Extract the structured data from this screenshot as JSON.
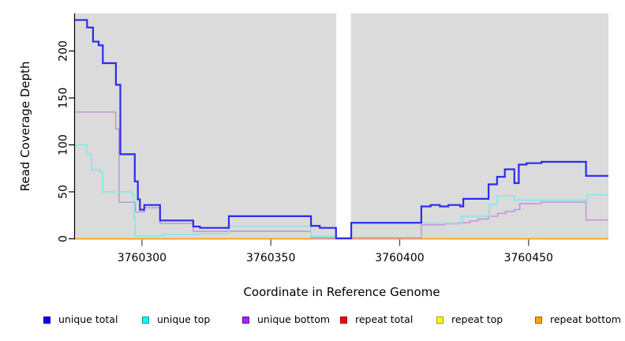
{
  "chart_data": {
    "type": "line",
    "subtype": "step",
    "title": "",
    "xlabel": "Coordinate in Reference Genome",
    "ylabel": "Read Coverage Depth",
    "xlim": [
      3760274,
      3760481
    ],
    "ylim": [
      0,
      240
    ],
    "x_ticks": [
      3760300,
      3760350,
      3760400,
      3760450
    ],
    "y_ticks": [
      0,
      50,
      100,
      150,
      200
    ],
    "grid": false,
    "legend_position": "bottom",
    "plot_background": "#DBDBDB",
    "page_background": "#FFFFFF",
    "gap_region": {
      "x_start": 3760375.4,
      "x_end": 3760381.1,
      "color": "#FFFFFF"
    },
    "series": [
      {
        "name": "repeat total",
        "line_color": "#E02222",
        "line_width": 1.2,
        "steps": [
          [
            3760274,
            0
          ]
        ]
      },
      {
        "name": "repeat top",
        "line_color": "#F5F500",
        "line_width": 1.2,
        "steps": [
          [
            3760274,
            0
          ]
        ]
      },
      {
        "name": "repeat bottom",
        "line_color": "#FFA413",
        "line_width": 1.8,
        "steps": [
          [
            3760274,
            0
          ]
        ]
      },
      {
        "name": "unique bottom",
        "line_color": "#C08FDC",
        "line_width": 1.4,
        "steps": [
          [
            3760274,
            135
          ],
          [
            3760289.8,
            117
          ],
          [
            3760291.1,
            39
          ],
          [
            3760297.5,
            28.5
          ],
          [
            3760300.9,
            33
          ],
          [
            3760307.0,
            16.3
          ],
          [
            3760319.9,
            8
          ],
          [
            3760365.6,
            0.8
          ],
          [
            3760375.3,
            0
          ],
          [
            3760381.2,
            0.8
          ],
          [
            3760408.4,
            14.9
          ],
          [
            3760417.5,
            15.9
          ],
          [
            3760423.2,
            17.1
          ],
          [
            3760427.3,
            19
          ],
          [
            3760430.4,
            21
          ],
          [
            3760434.4,
            24
          ],
          [
            3760438.0,
            27
          ],
          [
            3760441.1,
            29
          ],
          [
            3760444.5,
            31
          ],
          [
            3760446.6,
            37.4
          ],
          [
            3760454.9,
            39
          ],
          [
            3760472.3,
            20
          ]
        ]
      },
      {
        "name": "unique top",
        "line_color": "#7FE9E9",
        "line_width": 1.6,
        "steps": [
          [
            3760274,
            100
          ],
          [
            3760278.5,
            90
          ],
          [
            3760280.4,
            73.4
          ],
          [
            3760283.7,
            71
          ],
          [
            3760284.7,
            50
          ],
          [
            3760296.0,
            47
          ],
          [
            3760296.9,
            22.8
          ],
          [
            3760297.4,
            3
          ],
          [
            3760308.2,
            4.5
          ],
          [
            3760322.5,
            5.5
          ],
          [
            3760333.7,
            13.5
          ],
          [
            3760365.6,
            2.5
          ],
          [
            3760375.3,
            0.3
          ],
          [
            3760381.2,
            16
          ],
          [
            3760408.4,
            16.5
          ],
          [
            3760424.2,
            24.2
          ],
          [
            3760434.8,
            36.6
          ],
          [
            3760437.8,
            45.8
          ],
          [
            3760444.5,
            41.1
          ],
          [
            3760472.8,
            46.7
          ]
        ]
      },
      {
        "name": "unique total",
        "line_color": "#2B2BF0",
        "line_width": 2.2,
        "steps": [
          [
            3760274,
            233
          ],
          [
            3760278.7,
            225
          ],
          [
            3760281.0,
            210
          ],
          [
            3760283.2,
            206
          ],
          [
            3760284.8,
            187
          ],
          [
            3760289.9,
            164
          ],
          [
            3760291.6,
            90
          ],
          [
            3760297.2,
            61
          ],
          [
            3760298.4,
            42
          ],
          [
            3760299.2,
            31
          ],
          [
            3760300.9,
            36
          ],
          [
            3760307.0,
            19.5
          ],
          [
            3760319.9,
            13
          ],
          [
            3760322.5,
            11.6
          ],
          [
            3760333.7,
            24
          ],
          [
            3760365.6,
            13.8
          ],
          [
            3760369.0,
            11.6
          ],
          [
            3760375.3,
            0.5
          ],
          [
            3760381.2,
            17.1
          ],
          [
            3760408.4,
            34.5
          ],
          [
            3760412.0,
            36
          ],
          [
            3760415.6,
            34.5
          ],
          [
            3760418.9,
            36
          ],
          [
            3760423.5,
            34.5
          ],
          [
            3760424.7,
            42.5
          ],
          [
            3760434.5,
            58
          ],
          [
            3760437.8,
            66
          ],
          [
            3760440.8,
            74
          ],
          [
            3760444.5,
            59.3
          ],
          [
            3760446.2,
            79
          ],
          [
            3760449.2,
            80.5
          ],
          [
            3760455.0,
            82
          ],
          [
            3760472.3,
            67
          ]
        ]
      }
    ]
  },
  "legend": {
    "items": [
      {
        "label": "unique total",
        "fill": "#0000F0",
        "border": "#000090"
      },
      {
        "label": "unique top",
        "fill": "#00FFFF",
        "border": "#009999"
      },
      {
        "label": "unique bottom",
        "fill": "#A324F2",
        "border": "#6A10A0"
      },
      {
        "label": "repeat total",
        "fill": "#FF0000",
        "border": "#990000"
      },
      {
        "label": "repeat top",
        "fill": "#FFFF00",
        "border": "#999900"
      },
      {
        "label": "repeat bottom",
        "fill": "#FFA500",
        "border": "#A06000"
      }
    ]
  }
}
